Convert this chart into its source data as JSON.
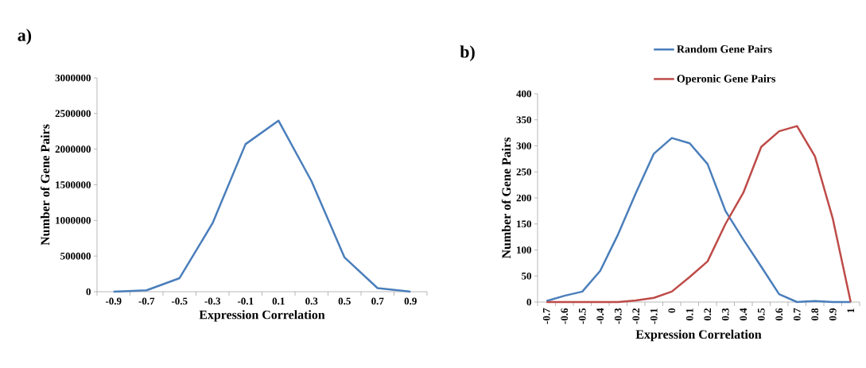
{
  "chart_data": [
    {
      "type": "line",
      "title": "a)",
      "xlabel": "Expression Correlation",
      "ylabel": "Number of Gene Pairs",
      "categories": [
        "-0.9",
        "-0.7",
        "-0.5",
        "-0.3",
        "-0.1",
        "0.1",
        "0.3",
        "0.5",
        "0.7",
        "0.9"
      ],
      "series": [
        {
          "color": "#4a7ebb",
          "values": [
            0,
            20000,
            190000,
            960000,
            2070000,
            2400000,
            1550000,
            480000,
            50000,
            0
          ]
        }
      ],
      "ylim": [
        0,
        3000000
      ],
      "yticks": [
        0,
        500000,
        1000000,
        1500000,
        2000000,
        2500000,
        3000000
      ],
      "grid": false,
      "marker": "none"
    },
    {
      "type": "line",
      "title": "b)",
      "xlabel": "Expression Correlation",
      "ylabel": "Number of Gene Pairs",
      "categories": [
        "-0.7",
        "-0.6",
        "-0.5",
        "-0.4",
        "-0.3",
        "-0.2",
        "-0.1",
        "0",
        "0.1",
        "0.2",
        "0.3",
        "0.4",
        "0.5",
        "0.6",
        "0.7",
        "0.8",
        "0.9",
        "1"
      ],
      "series": [
        {
          "name": "Random Gene Pairs",
          "color": "#4a7ebb",
          "values": [
            2,
            12,
            20,
            60,
            130,
            210,
            285,
            315,
            305,
            265,
            175,
            120,
            68,
            15,
            0,
            2,
            0,
            0
          ]
        },
        {
          "name": "Operonic Gene Pairs",
          "color": "#be4b48",
          "values": [
            0,
            0,
            0,
            0,
            0,
            3,
            8,
            20,
            48,
            78,
            150,
            210,
            298,
            328,
            338,
            280,
            160,
            0
          ]
        }
      ],
      "ylim": [
        0,
        400
      ],
      "yticks": [
        0,
        50,
        100,
        150,
        200,
        250,
        300,
        350,
        400
      ],
      "grid": false,
      "legend": "top",
      "marker": "none"
    }
  ]
}
